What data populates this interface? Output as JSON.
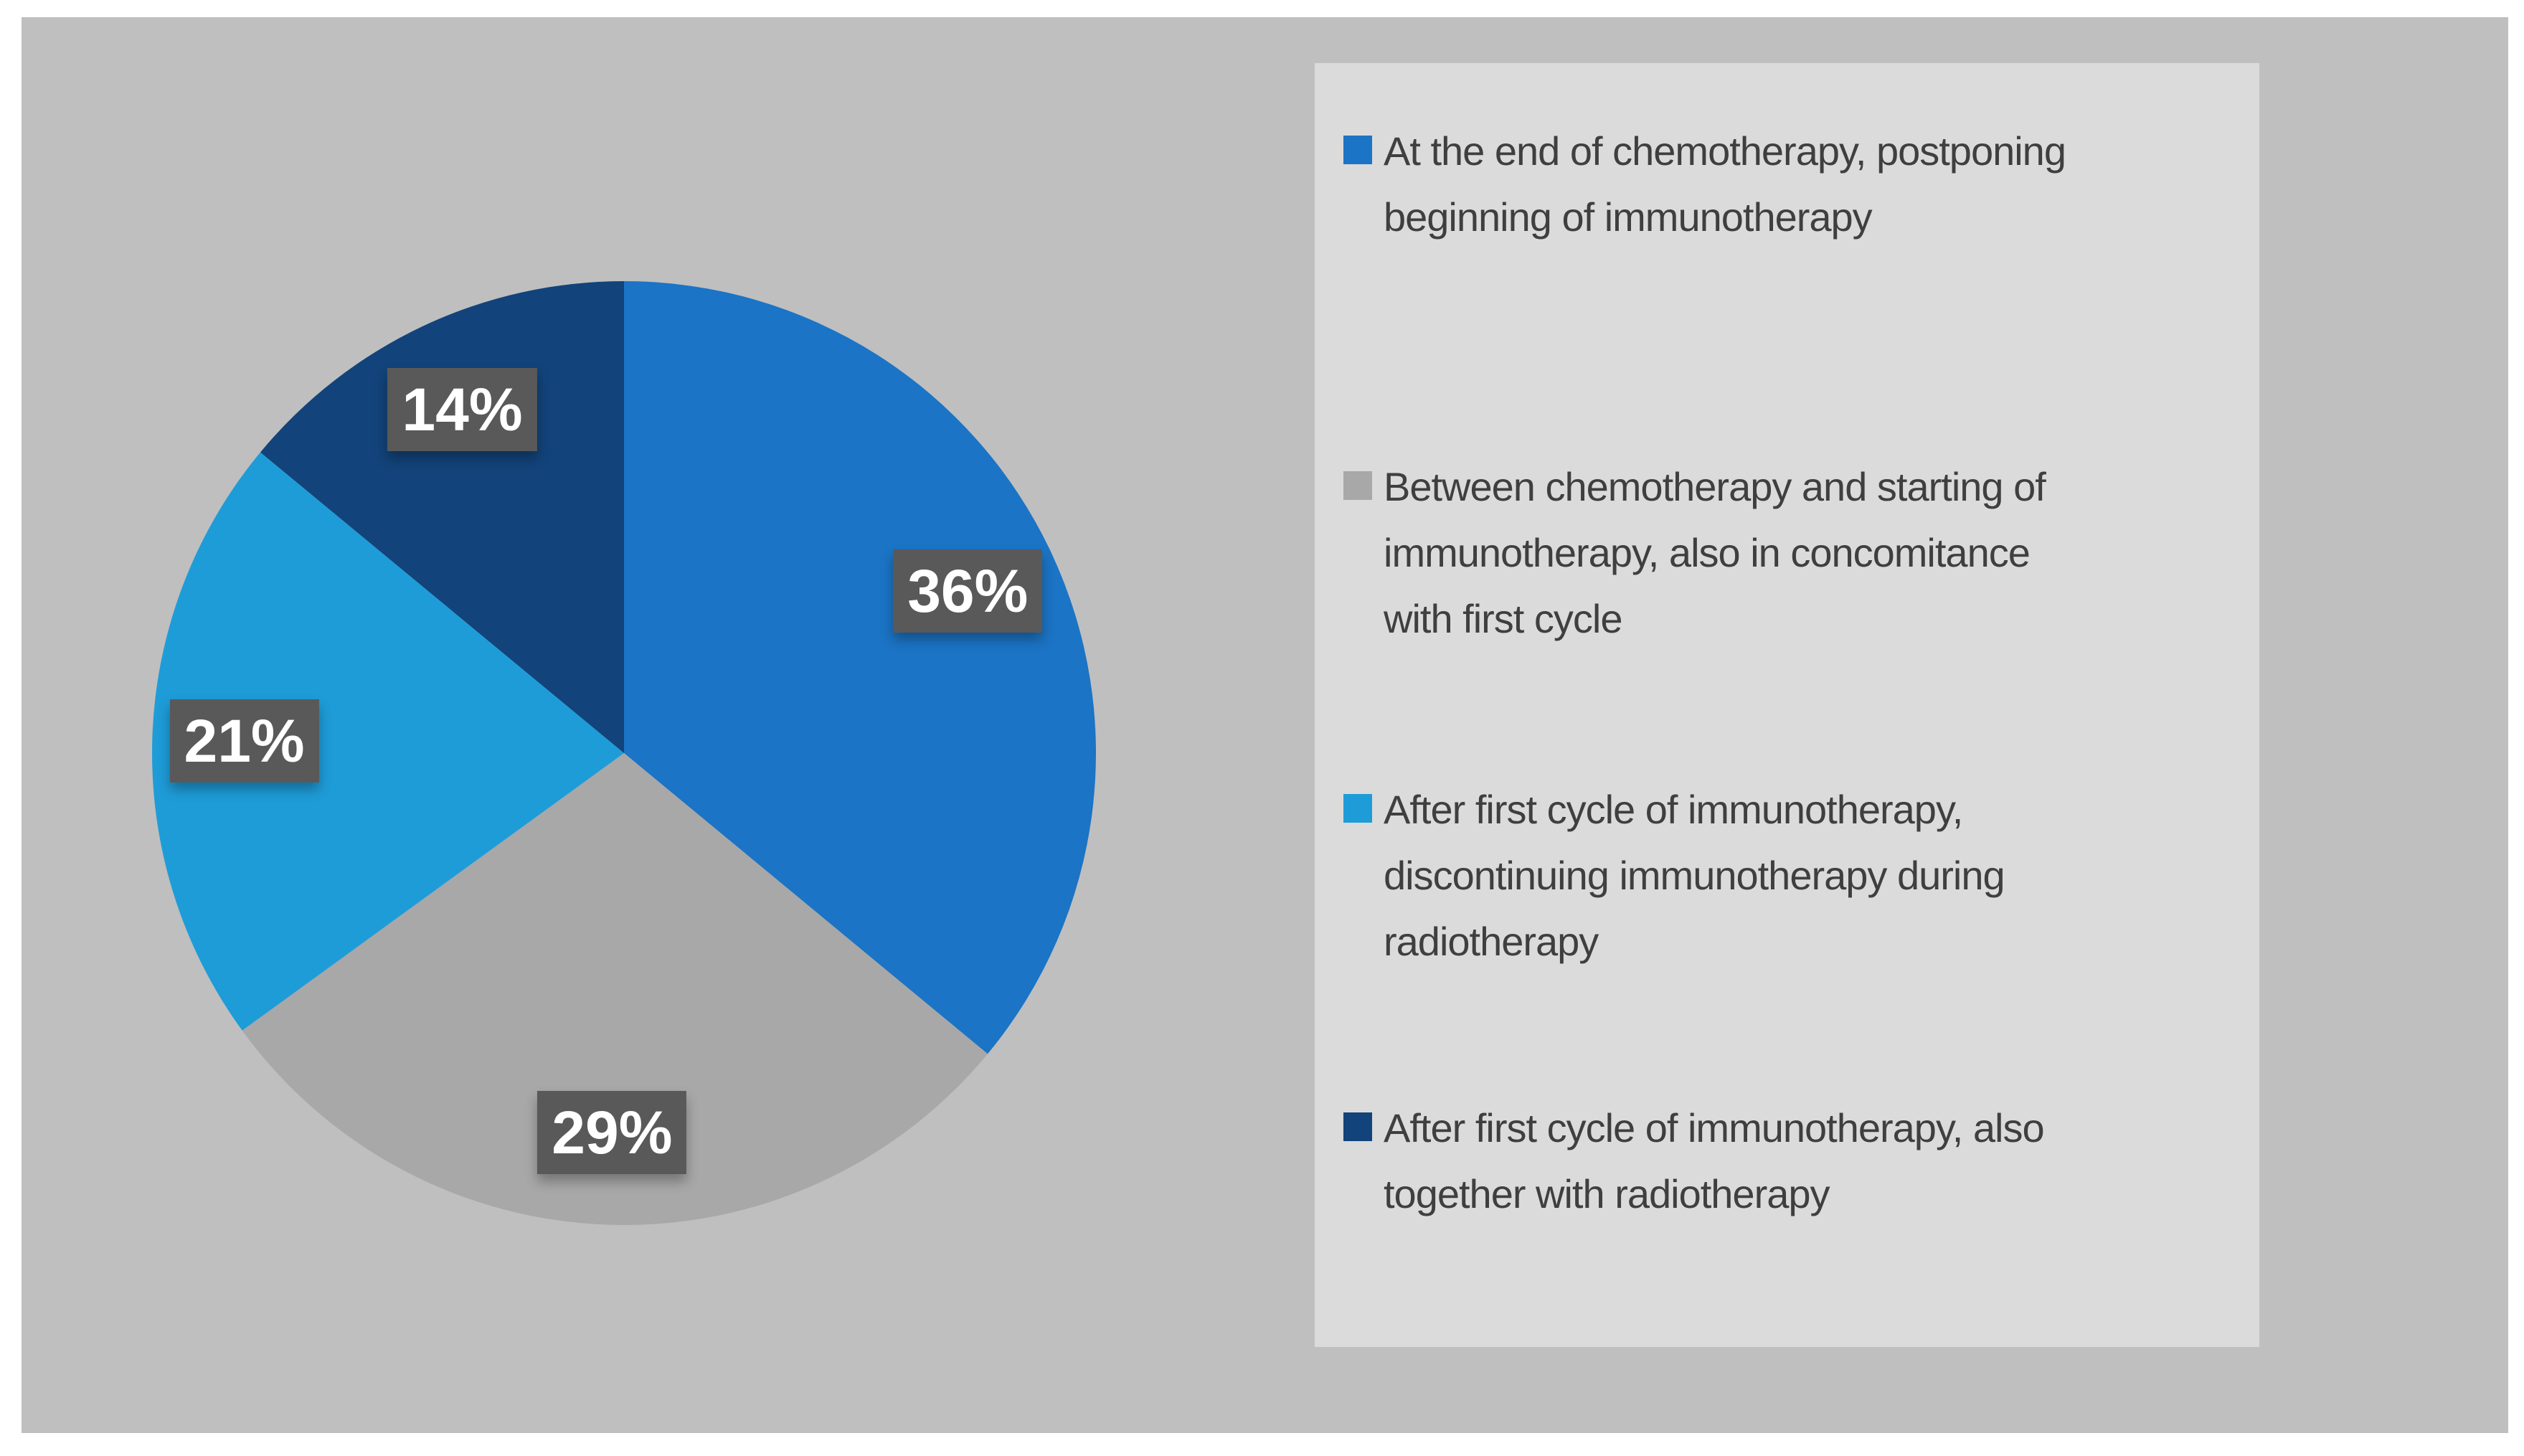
{
  "figure": {
    "outer_margin_color": "#FFFFFF",
    "background_color": "#BFBFBF"
  },
  "chart_data": {
    "type": "pie",
    "title": "",
    "labels": [
      "At the end of chemotherapy, postponing beginning of immunotherapy",
      "Between chemotherapy and starting of immunotherapy, also in concomitance with first cycle",
      "After first cycle of immunotherapy, discontinuing immunotherapy during radiotherapy",
      "After first cycle of immunotherapy, also together with radiotherapy"
    ],
    "values": [
      36,
      29,
      21,
      14
    ],
    "unit": "%",
    "data_labels": [
      "36%",
      "29%",
      "21%",
      "14%"
    ],
    "colors": [
      "#1B74C5",
      "#A8A8A8",
      "#1E9CD8",
      "#12437A"
    ],
    "start_angle_deg": 0,
    "direction": "clockwise",
    "data_label_style": {
      "background": "#595959",
      "text_color": "#FFFFFF"
    },
    "legend_position": "right",
    "legend_background": "#DBDBDB",
    "legend_text_color": "#3F3F3F"
  },
  "legend": {
    "items": [
      {
        "lines": [
          "At the end of chemotherapy, postponing",
          "beginning of immunotherapy"
        ]
      },
      {
        "lines": [
          "Between chemotherapy and starting of",
          "immunotherapy, also in concomitance",
          "with first cycle"
        ]
      },
      {
        "lines": [
          "After first cycle of immunotherapy,",
          "discontinuing immunotherapy during",
          "radiotherapy"
        ]
      },
      {
        "lines": [
          "After first cycle of immunotherapy, also",
          "together with radiotherapy"
        ]
      }
    ]
  }
}
